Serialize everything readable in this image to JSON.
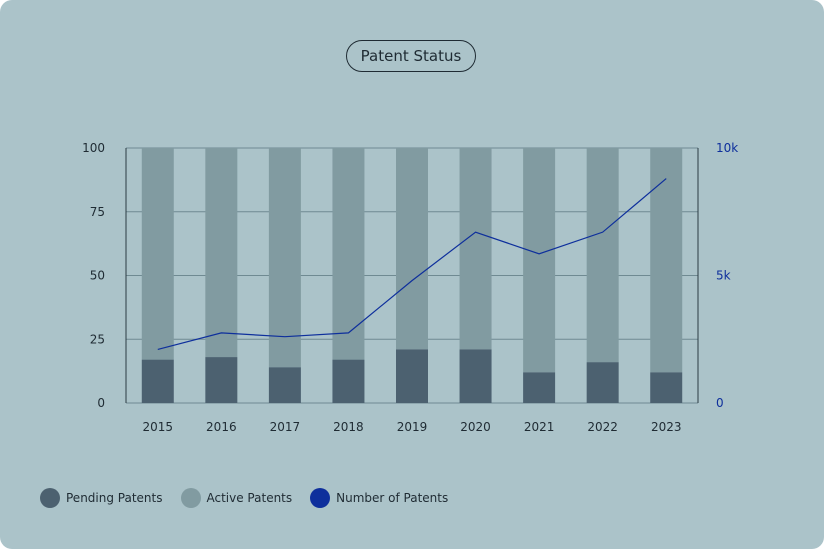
{
  "chart_data": {
    "type": "bar",
    "title": "Patent Status",
    "categories": [
      "2015",
      "2016",
      "2017",
      "2018",
      "2019",
      "2020",
      "2021",
      "2022",
      "2023"
    ],
    "stacked": true,
    "series": [
      {
        "name": "Pending Patents",
        "values": [
          17,
          18,
          14,
          17,
          21,
          21,
          12,
          16,
          12
        ],
        "color": "#4c6170",
        "axis": "left"
      },
      {
        "name": "Active Patents",
        "values": [
          83,
          82,
          86,
          83,
          79,
          79,
          88,
          84,
          88
        ],
        "color": "#819ba1",
        "axis": "left"
      },
      {
        "name": "Number of Patents",
        "type": "line",
        "values": [
          2100,
          2750,
          2600,
          2750,
          4800,
          6700,
          5850,
          6700,
          8800
        ],
        "color": "#0e2f9c",
        "axis": "right"
      }
    ],
    "y_left": {
      "min": 0,
      "max": 100,
      "ticks": [
        "0",
        "25",
        "50",
        "75",
        "100"
      ]
    },
    "y_right": {
      "min": 0,
      "max": 10000,
      "ticks": [
        "0",
        "5k",
        "10k"
      ],
      "tick_values": [
        0,
        5000,
        10000
      ]
    },
    "grid": true,
    "legend_position": "bottom-left"
  }
}
